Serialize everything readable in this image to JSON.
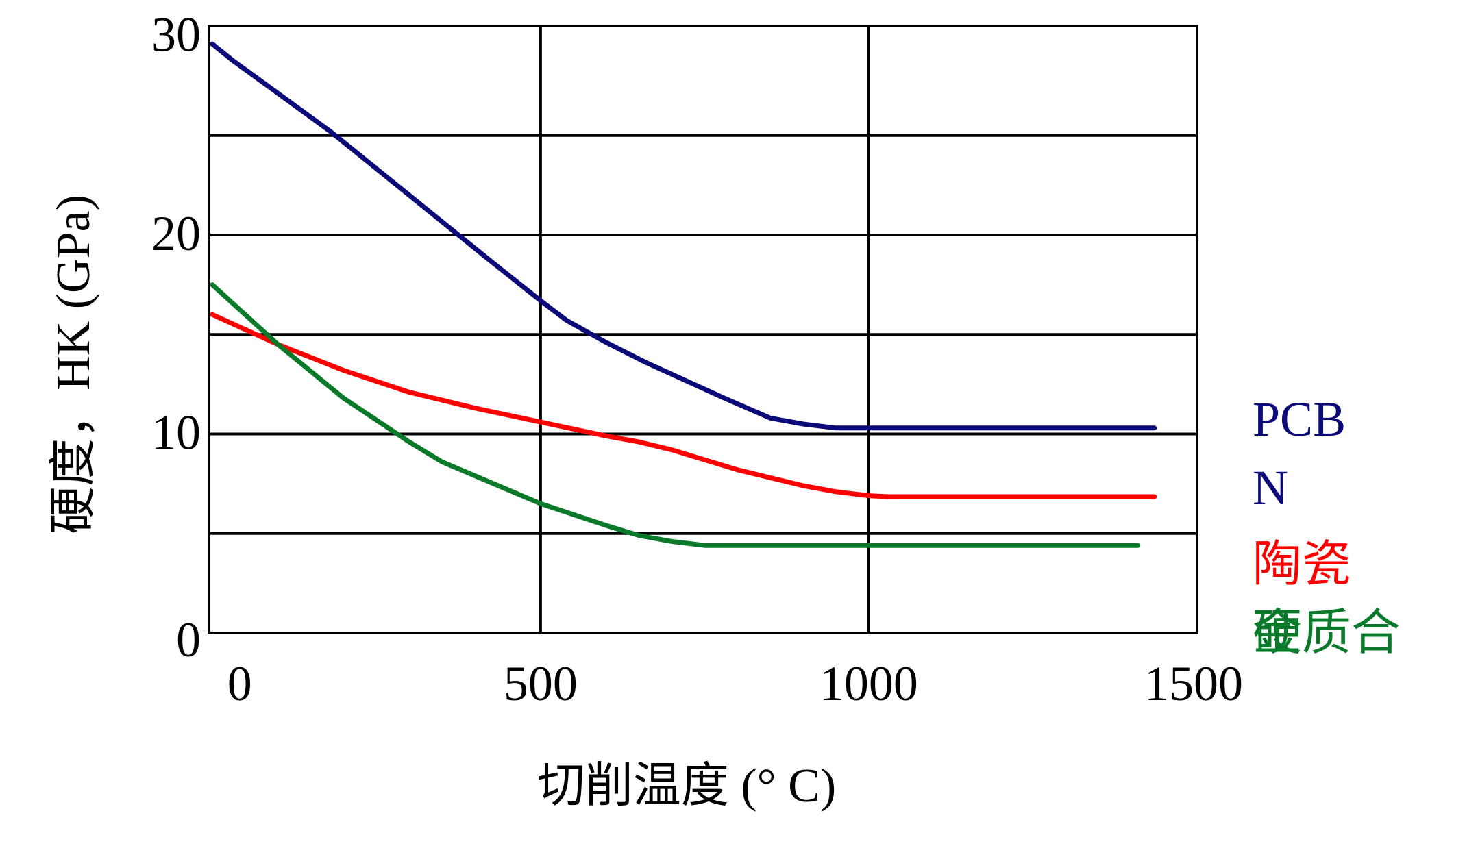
{
  "chart_data": {
    "type": "line",
    "title": "",
    "xlabel": "切削温度 (° C)",
    "ylabel": "硬度，HK (GPa)",
    "xlim": [
      -5,
      1500
    ],
    "ylim": [
      0,
      30.5
    ],
    "xticks": [
      "0",
      "500",
      "1000",
      "1500"
    ],
    "yticks": [
      "0",
      "10",
      "20",
      "30"
    ],
    "grid": true,
    "legend_position": "right",
    "series": [
      {
        "name": "PCBN",
        "color": "#0a0a78",
        "x": [
          0,
          30,
          80,
          180,
          300,
          420,
          500,
          540,
          600,
          660,
          720,
          780,
          850,
          900,
          950,
          1000,
          1100,
          1200,
          1300,
          1435
        ],
        "y": [
          29.6,
          28.8,
          27.6,
          25.2,
          22.0,
          18.8,
          16.7,
          15.7,
          14.6,
          13.6,
          12.7,
          11.8,
          10.8,
          10.5,
          10.3,
          10.3,
          10.3,
          10.3,
          10.3,
          10.3
        ]
      },
      {
        "name": "陶瓷",
        "color": "#ff0000",
        "x": [
          0,
          100,
          200,
          300,
          400,
          500,
          600,
          650,
          700,
          800,
          900,
          950,
          1000,
          1030,
          1100,
          1200,
          1300,
          1435
        ],
        "y": [
          16.0,
          14.5,
          13.2,
          12.1,
          11.3,
          10.6,
          9.9,
          9.6,
          9.2,
          8.2,
          7.4,
          7.1,
          6.9,
          6.85,
          6.85,
          6.85,
          6.85,
          6.85
        ]
      },
      {
        "name": "硬质合金",
        "color": "#0a7a2a",
        "x": [
          0,
          50,
          100,
          200,
          300,
          350,
          400,
          500,
          600,
          650,
          700,
          750,
          800,
          900,
          1000,
          1100,
          1200,
          1300,
          1410
        ],
        "y": [
          17.5,
          16.0,
          14.5,
          11.8,
          9.6,
          8.6,
          7.9,
          6.5,
          5.4,
          4.9,
          4.6,
          4.4,
          4.4,
          4.4,
          4.4,
          4.4,
          4.4,
          4.4,
          4.4
        ]
      }
    ]
  }
}
